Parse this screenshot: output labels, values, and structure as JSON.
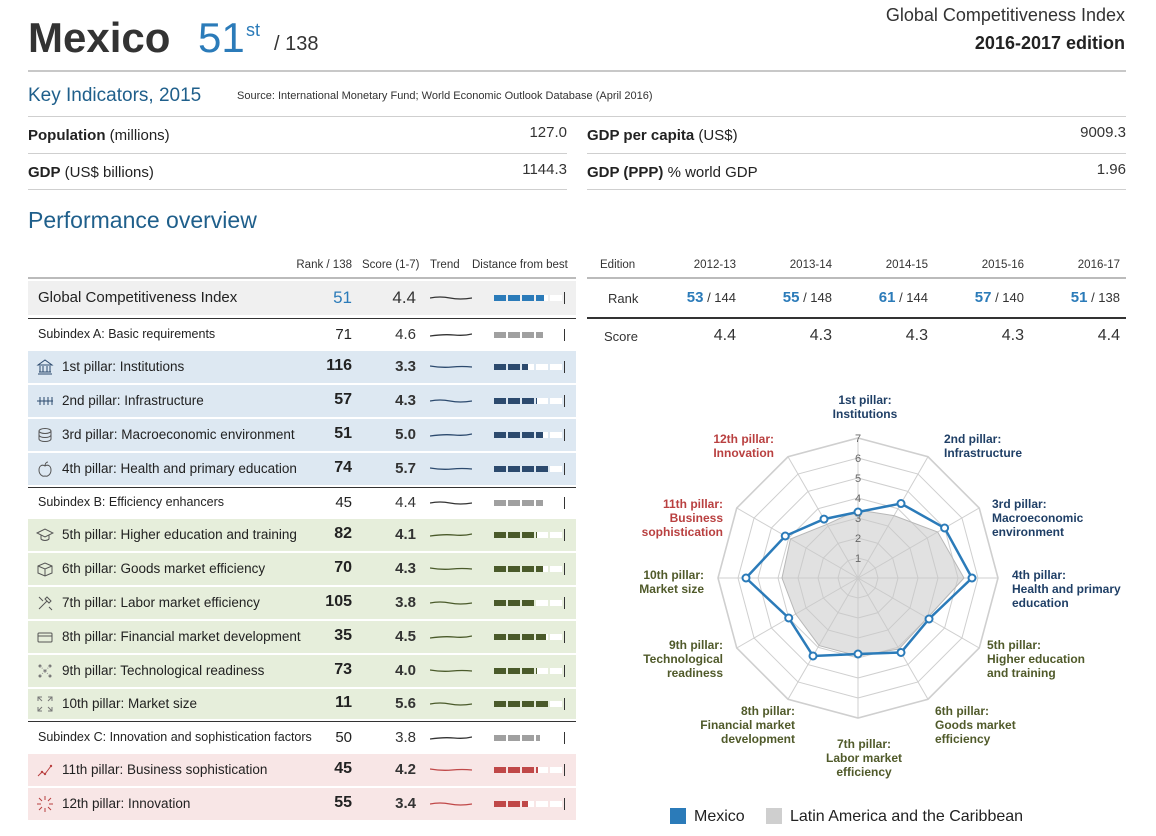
{
  "header": {
    "country": "Mexico",
    "rank": "51",
    "rank_suffix": "st",
    "rank_of": "/ 138",
    "index_name": "Global Competitiveness Index",
    "edition": "2016-2017 edition"
  },
  "key_indicators": {
    "title": "Key Indicators, 2015",
    "source": "Source: International Monetary Fund; World Economic Outlook Database (April 2016)",
    "items": [
      {
        "label_bold": "Population",
        "label_rest": " (millions)",
        "value": "127.0"
      },
      {
        "label_bold": "GDP",
        "label_rest": " (US$ billions)",
        "value": "1144.3"
      },
      {
        "label_bold": "GDP per capita",
        "label_rest": " (US$)",
        "value": "9009.3"
      },
      {
        "label_bold": "GDP (PPP)",
        "label_rest": " % world GDP",
        "value": "1.96"
      }
    ]
  },
  "performance": {
    "title": "Performance overview",
    "columns": {
      "rank": "Rank / 138",
      "score": "Score (1-7)",
      "trend": "Trend",
      "distance": "Distance from best",
      "edition": "Edition"
    },
    "rows": [
      {
        "label": "Global Competitiveness Index",
        "rank": "51",
        "score": "4.4",
        "kind": "gci",
        "dist": 0.73
      },
      {
        "label": "Subindex A: Basic requirements",
        "rank": "71",
        "score": "4.6",
        "kind": "sub",
        "dist": 0.72
      },
      {
        "label": "1st pillar: Institutions",
        "rank": "116",
        "score": "3.3",
        "kind": "a",
        "icon": "institution-icon",
        "dist": 0.5
      },
      {
        "label": "2nd pillar: Infrastructure",
        "rank": "57",
        "score": "4.3",
        "kind": "a",
        "icon": "infrastructure-icon",
        "dist": 0.62
      },
      {
        "label": "3rd pillar: Macroeconomic environment",
        "rank": "51",
        "score": "5.0",
        "kind": "a",
        "icon": "coins-icon",
        "dist": 0.72
      },
      {
        "label": "4th pillar: Health and primary education",
        "rank": "74",
        "score": "5.7",
        "kind": "a",
        "icon": "apple-icon",
        "dist": 0.8
      },
      {
        "label": "Subindex B: Efficiency enhancers",
        "rank": "45",
        "score": "4.4",
        "kind": "sub",
        "dist": 0.72
      },
      {
        "label": "5th pillar: Higher education and training",
        "rank": "82",
        "score": "4.1",
        "kind": "b",
        "icon": "graduation-cap-icon",
        "dist": 0.62
      },
      {
        "label": "6th pillar: Goods market efficiency",
        "rank": "70",
        "score": "4.3",
        "kind": "b",
        "icon": "box-icon",
        "dist": 0.72
      },
      {
        "label": "7th pillar: Labor market efficiency",
        "rank": "105",
        "score": "3.8",
        "kind": "b",
        "icon": "tools-icon",
        "dist": 0.6
      },
      {
        "label": "8th pillar: Financial market development",
        "rank": "35",
        "score": "4.5",
        "kind": "b",
        "icon": "bank-card-icon",
        "dist": 0.75
      },
      {
        "label": "9th pillar: Technological readiness",
        "rank": "73",
        "score": "4.0",
        "kind": "b",
        "icon": "network-icon",
        "dist": 0.62
      },
      {
        "label": "10th pillar: Market size",
        "rank": "11",
        "score": "5.6",
        "kind": "b",
        "icon": "expand-icon",
        "dist": 0.8
      },
      {
        "label": "Subindex C: Innovation and sophistication factors",
        "rank": "50",
        "score": "3.8",
        "kind": "sub",
        "dist": 0.66
      },
      {
        "label": "11th pillar: Business sophistication",
        "rank": "45",
        "score": "4.2",
        "kind": "c",
        "icon": "growth-chart-icon",
        "dist": 0.64
      },
      {
        "label": "12th pillar: Innovation",
        "rank": "55",
        "score": "3.4",
        "kind": "c",
        "icon": "sparkle-icon",
        "dist": 0.5
      }
    ],
    "editions": {
      "header": [
        "2012-13",
        "2013-14",
        "2014-15",
        "2015-16",
        "2016-17"
      ],
      "rank_label": "Rank",
      "score_label": "Score",
      "ranks": [
        {
          "rank": "53",
          "of": " / 144"
        },
        {
          "rank": "55",
          "of": " / 148"
        },
        {
          "rank": "61",
          "of": " / 144"
        },
        {
          "rank": "57",
          "of": " / 140"
        },
        {
          "rank": "51",
          "of": " / 138"
        }
      ],
      "scores": [
        "4.4",
        "4.3",
        "4.3",
        "4.3",
        "4.4"
      ]
    }
  },
  "chart_data": {
    "type": "radar",
    "axis_max": 7,
    "ticks": [
      "1",
      "2",
      "3",
      "4",
      "5",
      "6",
      "7"
    ],
    "axes": [
      {
        "label": [
          "1st pillar:",
          "Institutions"
        ],
        "group": "a"
      },
      {
        "label": [
          "2nd pillar:",
          "Infrastructure"
        ],
        "group": "a"
      },
      {
        "label": [
          "3rd pillar:",
          "Macroeconomic",
          "environment"
        ],
        "group": "a"
      },
      {
        "label": [
          "4th pillar:",
          "Health and primary",
          "education"
        ],
        "group": "a"
      },
      {
        "label": [
          "5th pillar:",
          "Higher education",
          "and training"
        ],
        "group": "b"
      },
      {
        "label": [
          "6th pillar:",
          "Goods market",
          "efficiency"
        ],
        "group": "b"
      },
      {
        "label": [
          "7th pillar:",
          "Labor market",
          "efficiency"
        ],
        "group": "b"
      },
      {
        "label": [
          "8th pillar:",
          "Financial market",
          "development"
        ],
        "group": "b"
      },
      {
        "label": [
          "9th pillar:",
          "Technological",
          "readiness"
        ],
        "group": "b"
      },
      {
        "label": [
          "10th pillar:",
          "Market size"
        ],
        "group": "b"
      },
      {
        "label": [
          "11th pillar:",
          "Business",
          "sophistication"
        ],
        "group": "c"
      },
      {
        "label": [
          "12th pillar:",
          "Innovation"
        ],
        "group": "c"
      }
    ],
    "series": [
      {
        "name": "Mexico",
        "values": [
          3.3,
          4.3,
          5.0,
          5.7,
          4.1,
          4.3,
          3.8,
          4.5,
          4.0,
          5.6,
          4.2,
          3.4
        ],
        "color": "#2b7bb9"
      },
      {
        "name": "Latin America and the Caribbean",
        "values": [
          3.4,
          3.6,
          4.6,
          5.3,
          4.0,
          4.1,
          3.9,
          3.9,
          3.6,
          3.8,
          3.9,
          3.1
        ],
        "color": "#c8c8c8"
      }
    ]
  },
  "colors": {
    "accent": "#2b7bb9",
    "group_a_text": "#1f3f66",
    "group_b_text": "#505a2a",
    "group_c_text": "#b94040",
    "group_a_bg": "#dde8f2",
    "group_b_bg": "#e6eedb",
    "group_c_bg": "#f8e6e6"
  }
}
